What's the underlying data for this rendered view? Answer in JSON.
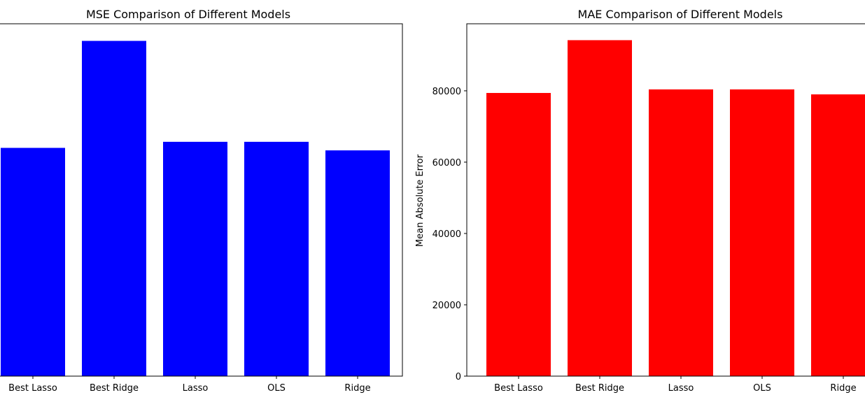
{
  "chart_data": [
    {
      "type": "bar",
      "title": "MSE Comparison of Different Models",
      "xlabel": "",
      "ylabel": "",
      "categories": [
        "Best Lasso",
        "Best Ridge",
        "Lasso",
        "OLS",
        "Ridge"
      ],
      "values": [
        64000,
        94000,
        65700,
        65700,
        63300
      ],
      "ylim": [
        0,
        98800
      ],
      "yticks": [],
      "color": "#0000ff",
      "grid": false
    },
    {
      "type": "bar",
      "title": "MAE Comparison of Different Models",
      "xlabel": "",
      "ylabel": "Mean Absolute Error",
      "categories": [
        "Best Lasso",
        "Best Ridge",
        "Lasso",
        "OLS",
        "Ridge"
      ],
      "values": [
        79400,
        94200,
        80400,
        80400,
        79000
      ],
      "ylim": [
        0,
        98800
      ],
      "yticks": [
        0,
        20000,
        40000,
        60000,
        80000
      ],
      "color": "#ff0000",
      "grid": false
    }
  ]
}
